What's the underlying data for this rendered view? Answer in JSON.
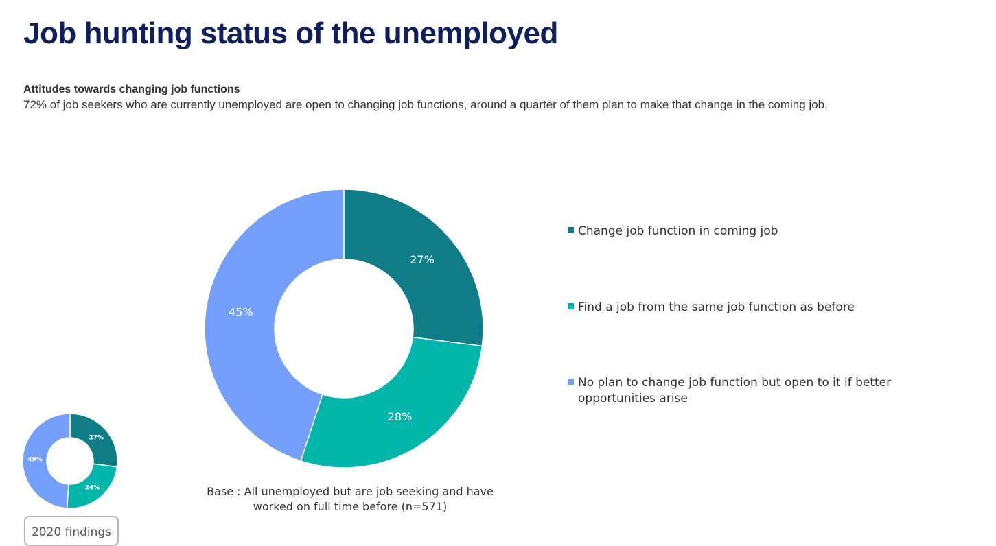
{
  "page": {
    "title": "Job hunting status of the unemployed",
    "subtitle_bold": "Attitudes towards changing job functions",
    "subtitle_text": "72% of job seekers who are currently unemployed are open to changing job functions, around a quarter of them plan to make that change in the coming job.",
    "base_note": "Base : All unemployed but are job seeking and have worked on full time before  (n=571)",
    "findings_label": "2020 findings"
  },
  "chart_data": [
    {
      "type": "pie",
      "categories": [
        "Change job function in coming job",
        "Find a job from the same job function as before",
        "No plan to change job function but open to it if better opportunities arise"
      ],
      "values": [
        27,
        28,
        45
      ],
      "labels": [
        "27%",
        "28%",
        "45%"
      ],
      "colors": [
        "#0f7d87",
        "#00b5a9",
        "#739ffb"
      ],
      "donut": true,
      "legend_position": "right"
    },
    {
      "type": "pie",
      "categories": [
        "Change job function in coming job",
        "Find a job from the same job function as before",
        "No plan to change job function but open to it if better opportunities arise"
      ],
      "values": [
        27,
        24,
        49
      ],
      "labels": [
        "27%",
        "24%",
        "49%"
      ],
      "colors": [
        "#0f7d87",
        "#00b5a9",
        "#739ffb"
      ],
      "donut": true,
      "caption": "2020 findings"
    }
  ]
}
